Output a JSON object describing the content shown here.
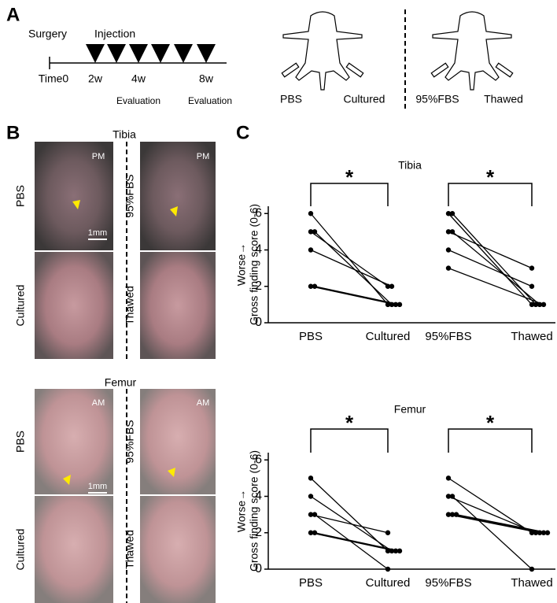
{
  "panel_a": {
    "letter": "A",
    "timeline": {
      "surgery": "Surgery",
      "injection": "Injection",
      "time0": "Time0",
      "w2": "2w",
      "w4": "4w",
      "eval1": "Evaluation",
      "w8": "8w",
      "eval2": "Evaluation"
    },
    "mice": [
      "PBS",
      "Cultured",
      "95%FBS",
      "Thawed"
    ]
  },
  "panel_b": {
    "letter": "B",
    "tibia": {
      "title": "Tibia",
      "labels": [
        "PBS",
        "95%FBS",
        "Cultured",
        "Thawed"
      ],
      "orientation": "PM",
      "scale": "1mm"
    },
    "femur": {
      "title": "Femur",
      "labels": [
        "PBS",
        "95%FBS",
        "Cultured",
        "Thawed"
      ],
      "orientation": "AM",
      "scale": "1mm"
    }
  },
  "panel_c": {
    "letter": "C"
  },
  "chart_data": [
    {
      "type": "line",
      "title": "Tibia",
      "ylabel": [
        "Worse→",
        "Gross finding score (0-6)"
      ],
      "categories": [
        "PBS",
        "Cultured",
        "95%FBS",
        "Thawed"
      ],
      "color": "#000000",
      "ylim": [
        0,
        6.4
      ],
      "yticks": [
        0,
        2,
        4,
        6
      ],
      "annotations": [
        "*",
        "*"
      ],
      "series": [
        {
          "values": [
            6,
            1,
            null,
            null
          ]
        },
        {
          "values": [
            5,
            2,
            null,
            null
          ]
        },
        {
          "values": [
            5,
            1,
            null,
            null
          ]
        },
        {
          "values": [
            4,
            2,
            null,
            null
          ]
        },
        {
          "values": [
            2,
            1,
            null,
            null
          ]
        },
        {
          "values": [
            2,
            1,
            null,
            null
          ]
        },
        {
          "values": [
            null,
            null,
            6,
            1
          ]
        },
        {
          "values": [
            null,
            null,
            6,
            1
          ]
        },
        {
          "values": [
            null,
            null,
            5,
            3
          ]
        },
        {
          "values": [
            null,
            null,
            5,
            1
          ]
        },
        {
          "values": [
            null,
            null,
            4,
            2
          ]
        },
        {
          "values": [
            null,
            null,
            3,
            1
          ]
        }
      ]
    },
    {
      "type": "line",
      "title": "Femur",
      "ylabel": [
        "Worse→",
        "Gross finding score (0-6)"
      ],
      "categories": [
        "PBS",
        "Cultured",
        "95%FBS",
        "Thawed"
      ],
      "color": "#000000",
      "ylim": [
        0,
        6.4
      ],
      "yticks": [
        0,
        2,
        4,
        6
      ],
      "annotations": [
        "*",
        "*"
      ],
      "series": [
        {
          "values": [
            5,
            1,
            null,
            null
          ]
        },
        {
          "values": [
            4,
            1,
            null,
            null
          ]
        },
        {
          "values": [
            3,
            2,
            null,
            null
          ]
        },
        {
          "values": [
            3,
            0,
            null,
            null
          ]
        },
        {
          "values": [
            2,
            1,
            null,
            null
          ]
        },
        {
          "values": [
            2,
            1,
            null,
            null
          ]
        },
        {
          "values": [
            null,
            null,
            5,
            2
          ]
        },
        {
          "values": [
            null,
            null,
            4,
            2
          ]
        },
        {
          "values": [
            null,
            null,
            4,
            0
          ]
        },
        {
          "values": [
            null,
            null,
            3,
            2
          ]
        },
        {
          "values": [
            null,
            null,
            3,
            2
          ]
        },
        {
          "values": [
            null,
            null,
            3,
            2
          ]
        }
      ]
    }
  ]
}
